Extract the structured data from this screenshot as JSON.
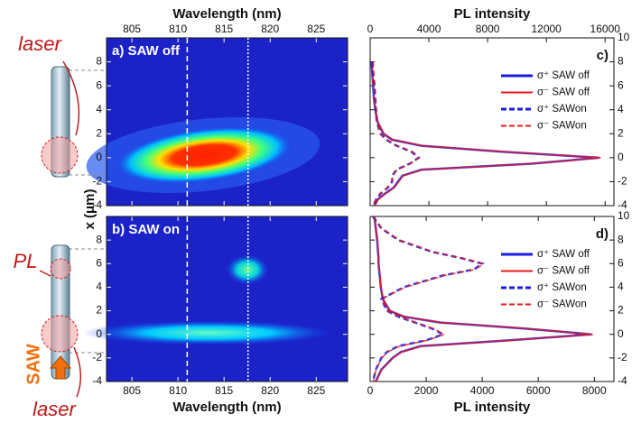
{
  "illustration": {
    "laser_top": "laser",
    "pl": "PL",
    "saw": "SAW",
    "laser_bottom": "laser"
  },
  "chart_data": [
    {
      "type": "heatmap",
      "panel_label": "a) SAW off",
      "xlabel": "Wavelength (nm)",
      "ylabel": "x (μm)",
      "xlim": [
        802.25,
        828.4
      ],
      "xticks": [
        805,
        810,
        815,
        820,
        825
      ],
      "ylim": [
        -4,
        10
      ],
      "yticks": [
        -4,
        -2,
        0,
        2,
        4,
        6,
        8
      ],
      "marker_lines": [
        811,
        817.6
      ]
    },
    {
      "type": "heatmap",
      "panel_label": "b) SAW on",
      "xlabel": "Wavelength (nm)",
      "xlim": [
        802.25,
        828.4
      ],
      "xticks": [
        805,
        810,
        815,
        820,
        825
      ],
      "ylim": [
        -4,
        10
      ],
      "yticks": [
        -4,
        -2,
        0,
        2,
        4,
        6,
        8
      ],
      "marker_lines": [
        811,
        817.6
      ]
    },
    {
      "type": "line",
      "panel_label": "c)",
      "xlabel": "PL intensity",
      "xlim": [
        0,
        16600
      ],
      "xticks": [
        0,
        4000,
        8000,
        12000,
        16000
      ],
      "ylim": [
        -4,
        10
      ],
      "yticks": [
        -4,
        -2,
        0,
        2,
        4,
        6,
        8,
        10
      ],
      "legend": "upper right",
      "y": [
        8,
        7,
        6,
        5,
        4,
        3,
        2,
        1.5,
        1,
        0.5,
        0,
        -0.5,
        -1,
        -1.5,
        -2,
        -2.5,
        -3,
        -3.5,
        -4
      ],
      "series": [
        {
          "name": "σ⁺ SAW off",
          "color": "#1a1ae0",
          "style": "solid",
          "values": [
            100,
            150,
            200,
            250,
            350,
            500,
            900,
            1500,
            3500,
            9000,
            15600,
            11000,
            3500,
            2200,
            1900,
            1600,
            1000,
            500,
            300
          ]
        },
        {
          "name": "σ⁻ SAW off",
          "color": "#e81818",
          "style": "solid",
          "values": [
            120,
            160,
            210,
            260,
            360,
            520,
            950,
            1550,
            3600,
            9200,
            15700,
            11100,
            3600,
            2250,
            1950,
            1650,
            1050,
            550,
            320
          ]
        },
        {
          "name": "σ⁺ SAWon",
          "color": "#1a1ae0",
          "style": "dashed",
          "values": [
            150,
            200,
            300,
            350,
            400,
            450,
            700,
            1100,
            1800,
            2800,
            3300,
            2700,
            1800,
            1500,
            1500,
            1200,
            700,
            400,
            200
          ]
        },
        {
          "name": "σ⁻ SAWon",
          "color": "#e81818",
          "style": "dashed",
          "values": [
            200,
            250,
            320,
            360,
            420,
            470,
            720,
            1150,
            1850,
            2900,
            3350,
            2750,
            1850,
            1550,
            1450,
            1150,
            650,
            380,
            200
          ]
        }
      ]
    },
    {
      "type": "line",
      "panel_label": "d)",
      "xlabel": "PL intensity",
      "xlim": [
        0,
        8700
      ],
      "xticks": [
        0,
        2000,
        4000,
        6000,
        8000
      ],
      "ylim": [
        -4,
        10
      ],
      "yticks": [
        -4,
        -2,
        0,
        2,
        4,
        6,
        8,
        10
      ],
      "legend": "upper right",
      "y": [
        10,
        9,
        8,
        7,
        6.5,
        6,
        5.5,
        5,
        4,
        3,
        2,
        1.5,
        1,
        0.5,
        0,
        -0.5,
        -1,
        -1.5,
        -2,
        -3,
        -4
      ],
      "series": [
        {
          "name": "σ⁺ SAW off",
          "color": "#1a1ae0",
          "style": "solid",
          "values": [
            150,
            200,
            250,
            280,
            300,
            300,
            320,
            340,
            380,
            450,
            700,
            1200,
            2500,
            5500,
            7900,
            5000,
            1800,
            1100,
            800,
            400,
            200
          ]
        },
        {
          "name": "σ⁻ SAW off",
          "color": "#e81818",
          "style": "solid",
          "values": [
            160,
            210,
            260,
            290,
            310,
            310,
            330,
            350,
            390,
            460,
            720,
            1250,
            2550,
            5600,
            7950,
            5050,
            1850,
            1120,
            820,
            410,
            210
          ]
        },
        {
          "name": "σ⁺ SAWon",
          "color": "#1a1ae0",
          "style": "dashed",
          "values": [
            100,
            400,
            1000,
            2200,
            3200,
            4000,
            3700,
            2600,
            1200,
            400,
            600,
            1000,
            1600,
            2200,
            2600,
            2000,
            1000,
            600,
            400,
            200,
            100
          ]
        },
        {
          "name": "σ⁻ SAWon",
          "color": "#e81818",
          "style": "dashed",
          "values": [
            120,
            420,
            1050,
            2250,
            3250,
            4050,
            3750,
            2650,
            1250,
            420,
            620,
            1050,
            1650,
            2250,
            2650,
            2050,
            1050,
            620,
            420,
            210,
            110
          ]
        }
      ]
    }
  ]
}
